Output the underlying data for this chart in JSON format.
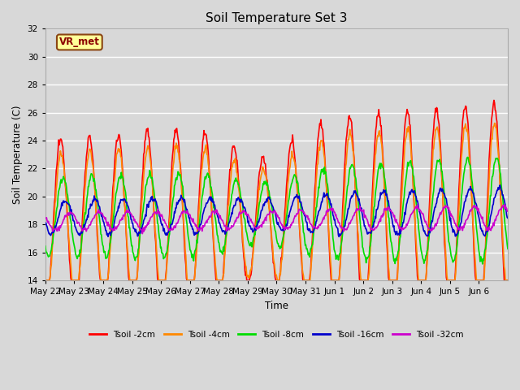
{
  "title": "Soil Temperature Set 3",
  "xlabel": "Time",
  "ylabel": "Soil Temperature (C)",
  "ylim": [
    14,
    32
  ],
  "yticks": [
    14,
    16,
    18,
    20,
    22,
    24,
    26,
    28,
    30,
    32
  ],
  "bg_color": "#d8d8d8",
  "plot_bg_color": "#d8d8d8",
  "grid_color": "#ffffff",
  "annotation_text": "VR_met",
  "annotation_box_color": "#ffff99",
  "annotation_border_color": "#8b4513",
  "series_colors": [
    "#ff0000",
    "#ff8800",
    "#00dd00",
    "#0000cc",
    "#cc00cc"
  ],
  "series_labels": [
    "Tsoil -2cm",
    "Tsoil -4cm",
    "Tsoil -8cm",
    "Tsoil -16cm",
    "Tsoil -32cm"
  ],
  "x_tick_labels": [
    "May 22",
    "May 23",
    "May 24",
    "May 25",
    "May 26",
    "May 27",
    "May 28",
    "May 29",
    "May 30",
    "May 31",
    "Jun 1",
    "Jun 2",
    "Jun 3",
    "Jun 4",
    "Jun 5",
    "Jun 6"
  ],
  "n_days": 16,
  "pts_per_day": 48
}
